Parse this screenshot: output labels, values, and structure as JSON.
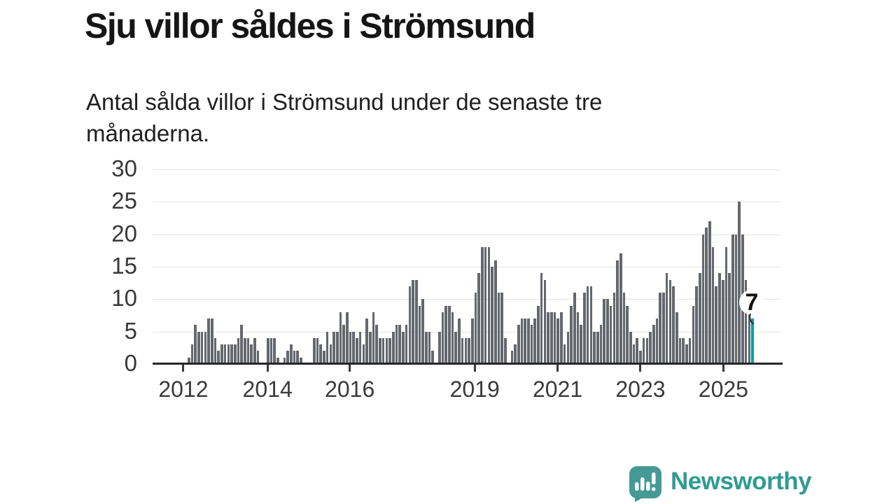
{
  "header": {
    "title": "Sju villor såldes i Strömsund",
    "subtitle": "Antal sålda villor i Strömsund under de senaste tre månaderna."
  },
  "chart_data": {
    "type": "bar",
    "title": "Sju villor såldes i Strömsund",
    "subtitle": "Antal sålda villor i Strömsund under de senaste tre månaderna.",
    "x_start": "2012-01",
    "x_interval": "month",
    "x_tick_labels": [
      "2012",
      "2014",
      "2016",
      "2019",
      "2021",
      "2023",
      "2025"
    ],
    "y_ticks": [
      0,
      5,
      10,
      15,
      20,
      25,
      30
    ],
    "ylim": [
      0,
      30
    ],
    "grid": true,
    "legend": "none",
    "values": [
      1,
      3,
      6,
      5,
      5,
      5,
      7,
      7,
      4,
      2,
      3,
      3,
      3,
      3,
      3,
      4,
      6,
      4,
      4,
      3,
      4,
      2,
      0,
      0,
      4,
      4,
      4,
      1,
      0,
      1,
      2,
      3,
      2,
      2,
      1,
      0,
      0,
      0,
      4,
      4,
      3,
      2,
      5,
      3,
      5,
      5,
      8,
      6,
      8,
      5,
      5,
      4,
      5,
      3,
      7,
      5,
      8,
      6,
      4,
      4,
      4,
      4,
      5,
      6,
      6,
      5,
      6,
      12,
      13,
      13,
      9,
      10,
      5,
      5,
      2,
      0,
      5,
      8,
      9,
      9,
      8,
      5,
      7,
      4,
      4,
      4,
      7,
      11,
      14,
      18,
      18,
      18,
      15,
      16,
      11,
      11,
      4,
      0,
      2,
      3,
      6,
      7,
      7,
      7,
      6,
      7,
      9,
      14,
      13,
      8,
      8,
      8,
      7,
      8,
      3,
      5,
      9,
      11,
      8,
      6,
      11,
      12,
      12,
      5,
      5,
      6,
      10,
      10,
      9,
      11,
      16,
      17,
      11,
      9,
      5,
      3,
      4,
      2,
      4,
      4,
      5,
      6,
      7,
      11,
      11,
      14,
      13,
      12,
      8,
      4,
      4,
      3,
      4,
      9,
      12,
      14,
      20,
      21,
      22,
      18,
      12,
      14,
      13,
      18,
      14,
      20,
      20,
      25,
      20,
      13,
      8,
      7
    ],
    "highlight": {
      "position": "last",
      "value": 7,
      "label": "7"
    },
    "colors": {
      "bar": "#64676e",
      "highlight": "#00a19e",
      "axis": "#262626",
      "grid": "#e4e4e4",
      "tick_text": "#3a3a3a"
    }
  },
  "annotation": {
    "label": "7"
  },
  "logo": {
    "text": "Newsworthy",
    "wordmark_color": "#2f9b94",
    "bubble_color": "#459a95"
  }
}
